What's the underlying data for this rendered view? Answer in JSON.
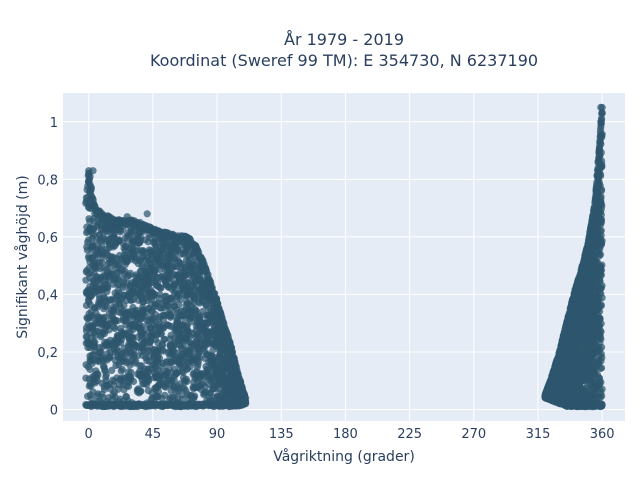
{
  "chart_data": {
    "type": "scatter",
    "title_line1": "År 1979 - 2019",
    "title_line2": "Koordinat (Sweref 99 TM): E 354730, N 6237190",
    "xlabel": "Vågriktning (grader)",
    "ylabel": "Signifikant våghöjd (m)",
    "xlim": [
      -18,
      376
    ],
    "ylim": [
      -0.04,
      1.1
    ],
    "x_ticks": [
      {
        "value": 0,
        "label": "0"
      },
      {
        "value": 45,
        "label": "45"
      },
      {
        "value": 90,
        "label": "90"
      },
      {
        "value": 135,
        "label": "135"
      },
      {
        "value": 180,
        "label": "180"
      },
      {
        "value": 225,
        "label": "225"
      },
      {
        "value": 270,
        "label": "270"
      },
      {
        "value": 315,
        "label": "315"
      },
      {
        "value": 360,
        "label": "360"
      }
    ],
    "y_ticks": [
      {
        "value": 0,
        "label": "0"
      },
      {
        "value": 0.2,
        "label": "0,2"
      },
      {
        "value": 0.4,
        "label": "0,4"
      },
      {
        "value": 0.6,
        "label": "0,6"
      },
      {
        "value": 0.8,
        "label": "0,8"
      },
      {
        "value": 1.0,
        "label": "1"
      }
    ],
    "grid": true,
    "colors": {
      "marker": "#2e566e",
      "plot_bg": "#e5ecf6",
      "grid": "#ffffff",
      "text": "#2a3f5f"
    },
    "envelope_series": [
      {
        "name": "sector-0-110",
        "x": [
          -2,
          0,
          2,
          5,
          10,
          20,
          30,
          40,
          50,
          60,
          70,
          75,
          80,
          85,
          90,
          95,
          100,
          105,
          110
        ],
        "ymin": [
          0.01,
          0.01,
          0.01,
          0.01,
          0.01,
          0.01,
          0.01,
          0.01,
          0.01,
          0.01,
          0.01,
          0.01,
          0.01,
          0.01,
          0.01,
          0.01,
          0.01,
          0.01,
          0.02
        ],
        "ymax": [
          0.72,
          0.83,
          0.75,
          0.7,
          0.68,
          0.66,
          0.66,
          0.64,
          0.62,
          0.61,
          0.6,
          0.57,
          0.52,
          0.45,
          0.38,
          0.3,
          0.22,
          0.12,
          0.04
        ]
      },
      {
        "name": "sector-320-360",
        "x": [
          320,
          325,
          330,
          335,
          340,
          345,
          350,
          355,
          357,
          359,
          360
        ],
        "ymin": [
          0.04,
          0.03,
          0.02,
          0.01,
          0.01,
          0.01,
          0.01,
          0.01,
          0.01,
          0.01,
          0.01
        ],
        "ymax": [
          0.05,
          0.12,
          0.2,
          0.3,
          0.4,
          0.48,
          0.58,
          0.72,
          0.85,
          0.98,
          1.05
        ]
      }
    ],
    "outlier_points": [
      {
        "x": 0,
        "y": 0.83
      },
      {
        "x": 3,
        "y": 0.83
      },
      {
        "x": 0,
        "y": 0.79
      },
      {
        "x": 2,
        "y": 0.77
      },
      {
        "x": 1,
        "y": 0.81
      },
      {
        "x": 41,
        "y": 0.68
      },
      {
        "x": 36,
        "y": 0.65
      },
      {
        "x": 27,
        "y": 0.67
      },
      {
        "x": 359,
        "y": 1.05
      },
      {
        "x": 360,
        "y": 1.03
      },
      {
        "x": 359,
        "y": 1.0
      },
      {
        "x": 108,
        "y": 0.03
      },
      {
        "x": 110,
        "y": 0.02
      }
    ]
  }
}
